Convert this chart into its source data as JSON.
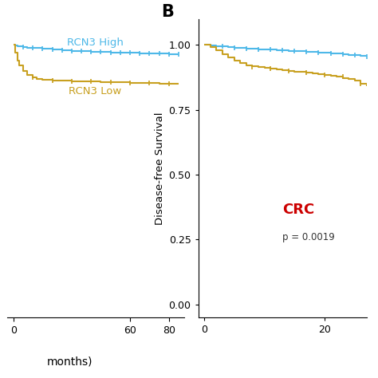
{
  "panel_B": {
    "label": "B",
    "ylabel": "Disease-free Survival",
    "yticks": [
      0.0,
      0.25,
      0.5,
      0.75,
      1.0
    ],
    "xlim": [
      -1,
      27
    ],
    "ylim": [
      -0.05,
      1.1
    ],
    "xticks": [
      0,
      20
    ],
    "xticklabels": [
      "0",
      "20"
    ],
    "annotation_text": "CRC",
    "annotation_color": "#cc0000",
    "pvalue_text": "p = 0.0019",
    "pvalue_color": "#333333",
    "high_color": "#4db8e8",
    "low_color": "#c8a020",
    "high_label": "RCN3 High",
    "low_label": "RCN3 Low",
    "high_times": [
      0,
      0.5,
      1,
      2,
      3,
      4,
      5,
      6,
      7,
      8,
      9,
      10,
      11,
      12,
      13,
      14,
      15,
      16,
      17,
      18,
      19,
      20,
      21,
      22,
      23,
      24,
      25,
      26,
      27
    ],
    "high_surv": [
      1.0,
      1.0,
      0.998,
      0.996,
      0.994,
      0.992,
      0.99,
      0.988,
      0.986,
      0.984,
      0.983,
      0.982,
      0.981,
      0.98,
      0.979,
      0.977,
      0.976,
      0.975,
      0.974,
      0.972,
      0.971,
      0.97,
      0.968,
      0.966,
      0.964,
      0.962,
      0.96,
      0.958,
      0.956
    ],
    "low_times": [
      0,
      1,
      2,
      3,
      4,
      5,
      6,
      7,
      8,
      9,
      10,
      11,
      12,
      13,
      14,
      15,
      16,
      17,
      18,
      19,
      20,
      21,
      22,
      23,
      24,
      25,
      26,
      27
    ],
    "low_surv": [
      1.0,
      0.992,
      0.98,
      0.965,
      0.952,
      0.94,
      0.93,
      0.922,
      0.918,
      0.914,
      0.911,
      0.908,
      0.905,
      0.903,
      0.9,
      0.897,
      0.895,
      0.892,
      0.89,
      0.887,
      0.885,
      0.882,
      0.878,
      0.873,
      0.868,
      0.862,
      0.85,
      0.84
    ],
    "high_censor_x": [
      3,
      5,
      7,
      9,
      11,
      13,
      15,
      17,
      19,
      21,
      23,
      25,
      27
    ],
    "high_censor_y": [
      0.994,
      0.99,
      0.986,
      0.983,
      0.981,
      0.979,
      0.976,
      0.974,
      0.971,
      0.968,
      0.964,
      0.96,
      0.956
    ],
    "low_censor_x": [
      8,
      11,
      14,
      17,
      20,
      23,
      26
    ],
    "low_censor_y": [
      0.914,
      0.908,
      0.9,
      0.892,
      0.885,
      0.878,
      0.85
    ]
  },
  "panel_A": {
    "high_color": "#4db8e8",
    "low_color": "#c8a020",
    "high_label": "RCN3 High",
    "low_label": "RCN3 Low",
    "xlim": [
      -3,
      88
    ],
    "ylim": [
      -0.05,
      1.1
    ],
    "xticks": [
      0,
      60,
      80
    ],
    "xticklabels": [
      "0",
      "60",
      "80"
    ],
    "months_label": "months)",
    "high_times": [
      0,
      1,
      2,
      3,
      5,
      7,
      10,
      15,
      20,
      25,
      30,
      35,
      40,
      45,
      50,
      55,
      60,
      65,
      70,
      75,
      80,
      85
    ],
    "high_surv": [
      1.0,
      0.998,
      0.996,
      0.994,
      0.992,
      0.99,
      0.988,
      0.985,
      0.982,
      0.979,
      0.977,
      0.975,
      0.973,
      0.972,
      0.971,
      0.97,
      0.969,
      0.968,
      0.967,
      0.966,
      0.965,
      0.964
    ],
    "low_times": [
      0,
      1,
      2,
      3,
      5,
      7,
      10,
      12,
      15,
      20,
      25,
      30,
      35,
      40,
      45,
      50,
      55,
      60,
      65,
      70,
      75,
      80,
      85
    ],
    "low_surv": [
      1.0,
      0.97,
      0.94,
      0.92,
      0.9,
      0.885,
      0.875,
      0.87,
      0.867,
      0.864,
      0.862,
      0.86,
      0.859,
      0.858,
      0.857,
      0.856,
      0.855,
      0.854,
      0.853,
      0.852,
      0.851,
      0.85,
      0.849
    ],
    "high_censor_x": [
      5,
      10,
      15,
      20,
      25,
      30,
      35,
      40,
      45,
      50,
      55,
      60,
      65,
      70,
      75,
      80,
      85
    ],
    "high_censor_y": [
      0.992,
      0.988,
      0.985,
      0.982,
      0.979,
      0.977,
      0.975,
      0.973,
      0.972,
      0.971,
      0.97,
      0.969,
      0.968,
      0.967,
      0.966,
      0.965,
      0.964
    ],
    "low_censor_x": [
      10,
      20,
      30,
      40,
      50,
      60,
      70,
      80
    ],
    "low_censor_y": [
      0.875,
      0.864,
      0.86,
      0.858,
      0.856,
      0.854,
      0.852,
      0.85
    ]
  },
  "bg_color": "#ffffff"
}
